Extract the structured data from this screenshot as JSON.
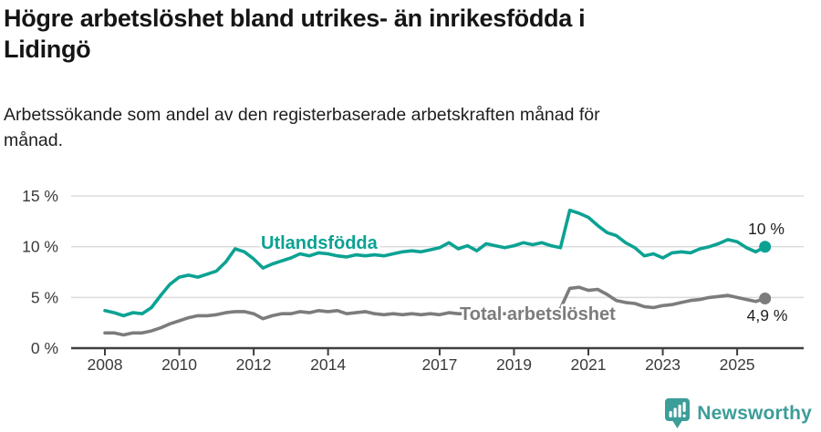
{
  "header": {
    "title": "Högre arbetslöshet bland utrikes- än inrikesfödda i Lidingö",
    "title_lines": [
      "Högre arbetslöshet bland utrikes- än inrikesfödda i",
      "Lidingö"
    ],
    "subtitle": "Arbetssökande som andel av den registerbaserade arbetskraften månad för månad.",
    "subtitle_lines": [
      "Arbetssökande som andel av den registerbaserade arbetskraften månad för",
      "månad."
    ]
  },
  "footer": {
    "brand": "Newsworthy",
    "logo_icon": "bar-chart-speech-bubble-icon",
    "brand_color": "#3c9d99"
  },
  "colors": {
    "series_foreign_born": "#0ba293",
    "series_total": "#7c7c7c",
    "gridline": "#dadada",
    "axis": "#3f3f3f",
    "text_dark": "#1f1f1f"
  },
  "chart_data": {
    "type": "line",
    "title": "Högre arbetslöshet bland utrikes- än inrikesfödda i Lidingö",
    "xlabel": "",
    "ylabel": "",
    "x_unit": "decimal_year",
    "xlim": [
      2007.1,
      2026.8
    ],
    "ylim": [
      0,
      15.8
    ],
    "grid": "horizontal",
    "legend_position": "inline-labels",
    "y_ticks": {
      "values": [
        15,
        10,
        5,
        0
      ],
      "labels": [
        "15 %",
        "10 %",
        "5 %",
        "0 %"
      ]
    },
    "x_ticks": {
      "values": [
        2008,
        2010,
        2012,
        2014,
        2017,
        2019,
        2021,
        2023,
        2025
      ],
      "labels": [
        "2008",
        "2010",
        "2012",
        "2014",
        "2017",
        "2019",
        "2021",
        "2023",
        "2025"
      ]
    },
    "x": [
      2008,
      2008.25,
      2008.5,
      2008.75,
      2009,
      2009.25,
      2009.5,
      2009.75,
      2010,
      2010.25,
      2010.5,
      2010.75,
      2011,
      2011.25,
      2011.5,
      2011.75,
      2012,
      2012.25,
      2012.5,
      2012.75,
      2013,
      2013.25,
      2013.5,
      2013.75,
      2014,
      2014.25,
      2014.5,
      2014.75,
      2015,
      2015.25,
      2015.5,
      2015.75,
      2016,
      2016.25,
      2016.5,
      2016.75,
      2017,
      2017.25,
      2017.5,
      2017.75,
      2018,
      2018.25,
      2018.5,
      2018.75,
      2019,
      2019.25,
      2019.5,
      2019.75,
      2020,
      2020.25,
      2020.5,
      2020.75,
      2021,
      2021.25,
      2021.5,
      2021.75,
      2022,
      2022.25,
      2022.5,
      2022.75,
      2023,
      2023.25,
      2023.5,
      2023.75,
      2024,
      2024.25,
      2024.5,
      2024.75,
      2025,
      2025.25,
      2025.5,
      2025.75
    ],
    "series": [
      {
        "name": "Utlandsfödda",
        "color": "#0ba293",
        "end_label": "10 %",
        "end_value": 10.0,
        "values": [
          3.7,
          3.5,
          3.2,
          3.5,
          3.4,
          4.0,
          5.2,
          6.3,
          7.0,
          7.2,
          7.0,
          7.3,
          7.6,
          8.5,
          9.8,
          9.5,
          8.8,
          7.9,
          8.3,
          8.6,
          8.9,
          9.3,
          9.1,
          9.4,
          9.3,
          9.1,
          9.0,
          9.2,
          9.1,
          9.2,
          9.1,
          9.3,
          9.5,
          9.6,
          9.5,
          9.7,
          9.9,
          10.4,
          9.8,
          10.1,
          9.6,
          10.3,
          10.1,
          9.9,
          10.1,
          10.4,
          10.2,
          10.4,
          10.1,
          9.9,
          13.6,
          13.3,
          12.9,
          12.1,
          11.4,
          11.1,
          10.4,
          9.9,
          9.1,
          9.3,
          8.9,
          9.4,
          9.5,
          9.4,
          9.8,
          10.0,
          10.3,
          10.7,
          10.5,
          9.9,
          9.5,
          10.0
        ]
      },
      {
        "name": "Total arbetslöshet",
        "color": "#7c7c7c",
        "end_label": "4,9 %",
        "end_value": 4.9,
        "values": [
          1.5,
          1.5,
          1.3,
          1.5,
          1.5,
          1.7,
          2.0,
          2.4,
          2.7,
          3.0,
          3.2,
          3.2,
          3.3,
          3.5,
          3.6,
          3.6,
          3.4,
          2.9,
          3.2,
          3.4,
          3.4,
          3.6,
          3.5,
          3.7,
          3.6,
          3.7,
          3.4,
          3.5,
          3.6,
          3.4,
          3.3,
          3.4,
          3.3,
          3.4,
          3.3,
          3.4,
          3.3,
          3.5,
          3.4,
          3.4,
          3.3,
          3.5,
          3.4,
          3.4,
          3.4,
          3.5,
          3.5,
          3.6,
          3.6,
          3.9,
          5.9,
          6.0,
          5.7,
          5.8,
          5.3,
          4.7,
          4.5,
          4.4,
          4.1,
          4.0,
          4.2,
          4.3,
          4.5,
          4.7,
          4.8,
          5.0,
          5.1,
          5.2,
          5.0,
          4.8,
          4.6,
          4.9
        ]
      }
    ]
  }
}
